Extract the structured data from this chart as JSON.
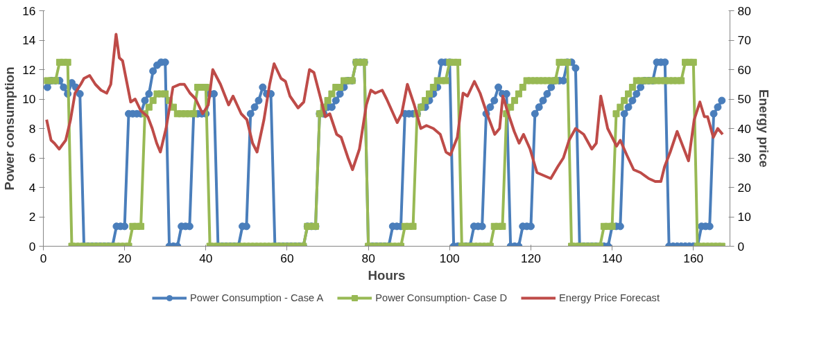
{
  "chart_data": {
    "type": "line",
    "xlabel": "Hours",
    "ylabel": "Power consumption",
    "y2label": "Energy price",
    "xlim": [
      0,
      169
    ],
    "xticks": [
      0,
      20,
      40,
      60,
      80,
      100,
      120,
      140,
      160
    ],
    "ylim": [
      0,
      16
    ],
    "yticks": [
      0,
      2,
      4,
      6,
      8,
      10,
      12,
      14,
      16
    ],
    "y2lim": [
      0,
      80
    ],
    "y2ticks": [
      0,
      10,
      20,
      30,
      40,
      50,
      60,
      70,
      80
    ],
    "grid": false,
    "legend": "bottom",
    "x": [
      1,
      2,
      3,
      4,
      5,
      6,
      7,
      8,
      9,
      10,
      11,
      12,
      13,
      14,
      15,
      16,
      17,
      18,
      19,
      20,
      21,
      22,
      23,
      24,
      25,
      26,
      27,
      28,
      29,
      30,
      31,
      32,
      33,
      34,
      35,
      36,
      37,
      38,
      39,
      40,
      41,
      42,
      43,
      44,
      45,
      46,
      47,
      48,
      49,
      50,
      51,
      52,
      53,
      54,
      55,
      56,
      57,
      58,
      59,
      60,
      61,
      62,
      63,
      64,
      65,
      66,
      67,
      68,
      69,
      70,
      71,
      72,
      73,
      74,
      75,
      76,
      77,
      78,
      79,
      80,
      81,
      82,
      83,
      84,
      85,
      86,
      87,
      88,
      89,
      90,
      91,
      92,
      93,
      94,
      95,
      96,
      97,
      98,
      99,
      100,
      101,
      102,
      103,
      104,
      105,
      106,
      107,
      108,
      109,
      110,
      111,
      112,
      113,
      114,
      115,
      116,
      117,
      118,
      119,
      120,
      121,
      122,
      123,
      124,
      125,
      126,
      127,
      128,
      129,
      130,
      131,
      132,
      133,
      134,
      135,
      136,
      137,
      138,
      139,
      140,
      141,
      142,
      143,
      144,
      145,
      146,
      147,
      148,
      149,
      150,
      151,
      152,
      153,
      154,
      155,
      156,
      157,
      158,
      159,
      160,
      161,
      162,
      163,
      164,
      165,
      166,
      167
    ],
    "series": [
      {
        "name": "Power Consumption - Case A",
        "color": "#4a7ebb",
        "marker": "circle",
        "values": [
          10.8,
          11.25,
          11.25,
          11.25,
          10.8,
          10.35,
          11.1,
          10.8,
          10.35,
          0,
          0,
          0,
          0,
          0,
          0,
          0,
          0,
          1.35,
          1.35,
          1.35,
          9,
          9,
          9,
          9,
          9.9,
          10.35,
          11.9,
          12.3,
          12.5,
          12.5,
          0,
          0,
          0,
          1.35,
          1.35,
          1.35,
          9,
          9,
          9,
          9,
          10.35,
          10.35,
          0,
          0,
          0,
          0,
          0,
          0,
          1.35,
          1.35,
          9,
          9.45,
          9.9,
          10.8,
          10.35,
          10.35,
          0,
          0,
          0,
          0,
          0,
          0,
          0,
          0,
          1.35,
          1.35,
          1.35,
          9,
          9,
          9.45,
          9.45,
          9.9,
          10.35,
          10.8,
          11.25,
          11.25,
          12.5,
          12.5,
          12.5,
          0,
          0,
          0,
          0,
          0,
          0,
          1.35,
          1.35,
          1.35,
          9,
          9,
          9,
          9,
          9.45,
          9.45,
          9.9,
          10.35,
          10.8,
          12.5,
          12.5,
          12.5,
          0,
          0,
          0,
          0,
          0,
          1.35,
          1.35,
          1.35,
          9,
          9.45,
          9.9,
          10.8,
          10.35,
          10.35,
          0,
          0,
          0,
          1.35,
          1.35,
          1.35,
          9,
          9.45,
          9.9,
          10.35,
          10.8,
          11.25,
          11.25,
          11.25,
          12.5,
          12.5,
          12.1,
          0,
          0,
          0,
          0,
          0,
          0,
          0,
          0,
          1.35,
          1.35,
          1.35,
          9,
          9.45,
          9.9,
          10.35,
          10.8,
          11.25,
          11.25,
          11.25,
          12.5,
          12.5,
          12.5,
          0,
          0,
          0,
          0,
          0,
          0,
          0,
          0,
          1.35,
          1.35,
          1.35,
          9,
          9.45,
          9.9
        ]
      },
      {
        "name": "Power Consumption- Case D",
        "color": "#98b954",
        "marker": "square",
        "values": [
          11.25,
          11.25,
          11.25,
          12.5,
          12.5,
          12.5,
          0,
          0,
          0,
          0,
          0,
          0,
          0,
          0,
          0,
          0,
          0,
          0,
          0,
          0,
          0,
          1.35,
          1.35,
          1.35,
          9,
          9.45,
          9.9,
          10.35,
          10.35,
          10.35,
          9.9,
          9.45,
          9,
          9,
          9,
          9,
          9,
          10.8,
          10.8,
          10.8,
          0,
          0,
          0,
          0,
          0,
          0,
          0,
          0,
          0,
          0,
          0,
          0,
          0,
          0,
          0,
          0,
          0,
          0,
          0,
          0,
          0,
          0,
          0,
          0,
          1.35,
          1.35,
          1.35,
          9,
          9.45,
          9.9,
          10.35,
          10.8,
          10.8,
          11.25,
          11.25,
          11.25,
          12.5,
          12.5,
          12.5,
          0,
          0,
          0,
          0,
          0,
          0,
          0,
          0,
          0,
          1.35,
          1.35,
          1.35,
          9,
          9.45,
          9.9,
          10.35,
          10.8,
          11.25,
          11.25,
          11.25,
          12.5,
          12.5,
          12.5,
          0,
          0,
          0,
          0,
          0,
          0,
          0,
          0,
          1.35,
          1.35,
          1.35,
          9,
          9.45,
          9.9,
          10.35,
          10.8,
          11.25,
          11.25,
          11.25,
          11.25,
          11.25,
          11.25,
          11.25,
          11.25,
          12.5,
          12.5,
          12.5,
          0,
          0,
          0,
          0,
          0,
          0,
          0,
          0,
          1.35,
          1.35,
          1.35,
          9,
          9.45,
          9.9,
          10.35,
          10.8,
          11.25,
          11.25,
          11.25,
          11.25,
          11.25,
          11.25,
          11.25,
          11.25,
          11.25,
          11.25,
          11.25,
          11.25,
          12.5,
          12.5,
          12.5,
          0,
          0,
          0,
          0,
          0,
          0,
          0
        ]
      },
      {
        "name": "Energy Price Forecast",
        "color": "#be4b48",
        "marker": "none",
        "axis": "y2",
        "x": [
          0.8,
          1.9,
          2.7,
          3.9,
          5.5,
          6.7,
          7.8,
          9.2,
          10,
          11.4,
          12.8,
          14.2,
          15.6,
          16.6,
          17.9,
          18.7,
          19.5,
          21.5,
          22.6,
          24,
          25.7,
          26.8,
          27.9,
          28.8,
          30.2,
          31.9,
          33.6,
          34.7,
          36.1,
          37.5,
          39.2,
          40.6,
          41.7,
          43.6,
          45.6,
          46.7,
          48.7,
          50.1,
          51.5,
          52.6,
          54.3,
          55.7,
          56.8,
          58.5,
          59.6,
          60.7,
          62.7,
          64.1,
          65.5,
          66.6,
          68.3,
          69.4,
          70.5,
          72.2,
          73.3,
          75,
          76.1,
          77.8,
          79.5,
          80.6,
          81.7,
          83.4,
          84.5,
          87.1,
          88.2,
          89.6,
          91.3,
          92.9,
          94.3,
          96,
          97.7,
          99.1,
          100.2,
          101.9,
          103.3,
          104.4,
          106.1,
          107.5,
          109.2,
          111.1,
          112.3,
          113.1,
          114.2,
          115.9,
          117.1,
          118.2,
          119.8,
          121.5,
          123.2,
          124.9,
          126.6,
          128,
          129.4,
          131,
          133,
          135,
          136.1,
          137.2,
          138.9,
          140,
          141.1,
          142,
          143.6,
          145.3,
          147,
          149,
          150.6,
          152,
          152.9,
          154.3,
          156,
          157.4,
          158.8,
          160.2,
          161.6,
          162.7,
          163.5,
          164.9,
          166,
          167.2
        ],
        "values": [
          43,
          36,
          35,
          33,
          36,
          43,
          52,
          55,
          57,
          58,
          55,
          53,
          52,
          55,
          72,
          64,
          63,
          49,
          50,
          46,
          44,
          40,
          35,
          32,
          40,
          54,
          55,
          55,
          52,
          50,
          45,
          48,
          60,
          55,
          48,
          51,
          45,
          43,
          35,
          32,
          43,
          55,
          62,
          57,
          56,
          51,
          47,
          49,
          60,
          59,
          50,
          44,
          45,
          38,
          37,
          30,
          26,
          33,
          48,
          53,
          52,
          53,
          50,
          42,
          45,
          55,
          48,
          40,
          41,
          40,
          38,
          32,
          31,
          37,
          52,
          51,
          56,
          52,
          45,
          38,
          40,
          51,
          46,
          39,
          35,
          38,
          33,
          25,
          24,
          23,
          27,
          30,
          36,
          40,
          38,
          33,
          35,
          51,
          40,
          37,
          34,
          36,
          31,
          26,
          25,
          23,
          22,
          22,
          27,
          32,
          39,
          34,
          29,
          43,
          49,
          44,
          44,
          37,
          40,
          38
        ]
      }
    ]
  }
}
